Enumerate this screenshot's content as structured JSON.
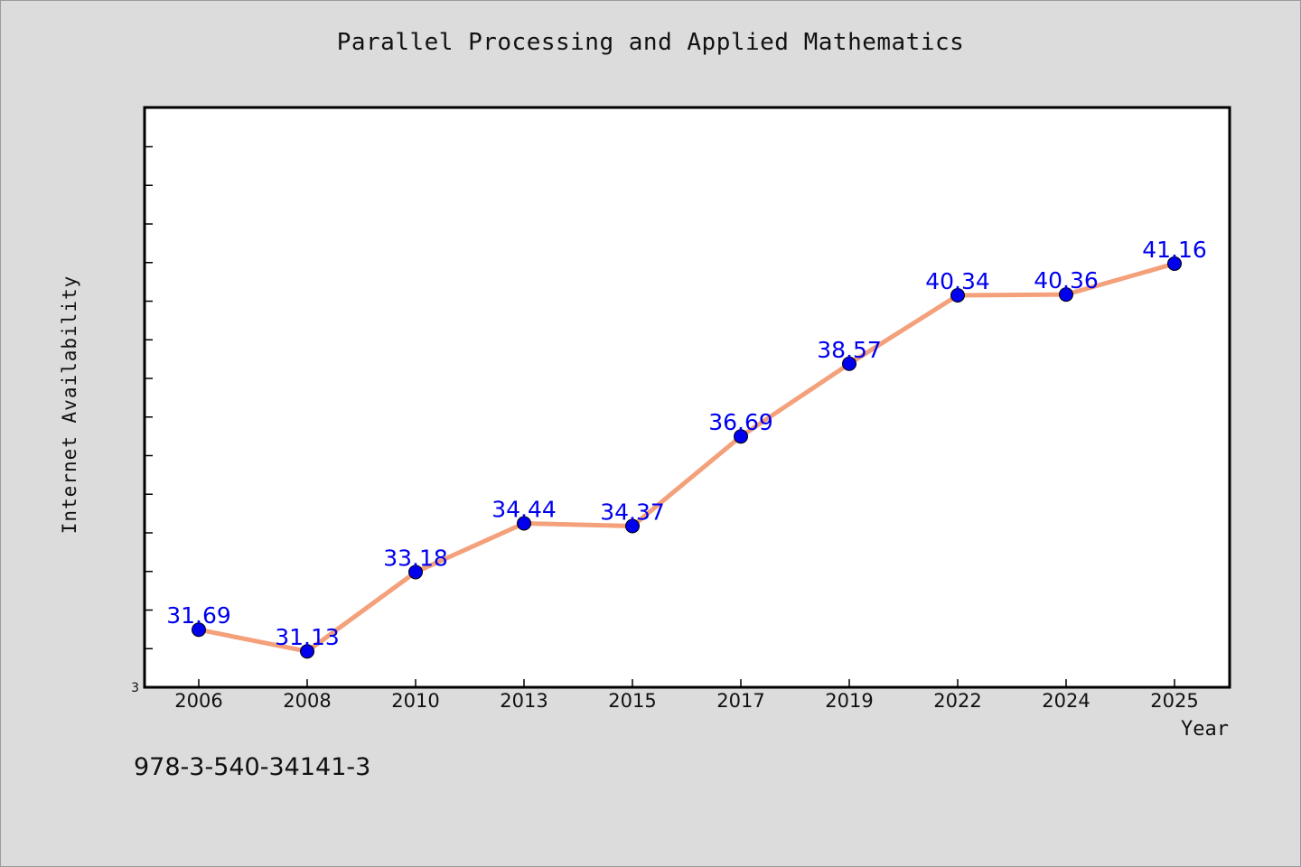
{
  "chart_data": {
    "type": "line",
    "title": "Parallel Processing and Applied Mathematics",
    "xlabel": "Year",
    "ylabel": "Internet Availability",
    "categories": [
      "2006",
      "2008",
      "2010",
      "2013",
      "2015",
      "2017",
      "2019",
      "2022",
      "2024",
      "2025"
    ],
    "series": [
      {
        "values": [
          31.69,
          31.13,
          33.18,
          34.44,
          34.37,
          36.69,
          38.57,
          40.34,
          40.36,
          41.16
        ],
        "labels": [
          "31.69",
          "31.13",
          "33.18",
          "34.44",
          "34.37",
          "36.69",
          "38.57",
          "40.34",
          "40.36",
          "41.16"
        ]
      }
    ],
    "ylim": [
      30.2,
      45.2
    ],
    "y_ticks_labeled": [
      "3"
    ],
    "grid": false,
    "legend": "none",
    "colors": {
      "line": "#f4a07a",
      "marker": "#0000ee",
      "data_label": "#0000ee",
      "background": "#dcdcdc",
      "plot_background": "#ffffff"
    }
  },
  "footer": {
    "isbn": "978-3-540-34141-3"
  }
}
